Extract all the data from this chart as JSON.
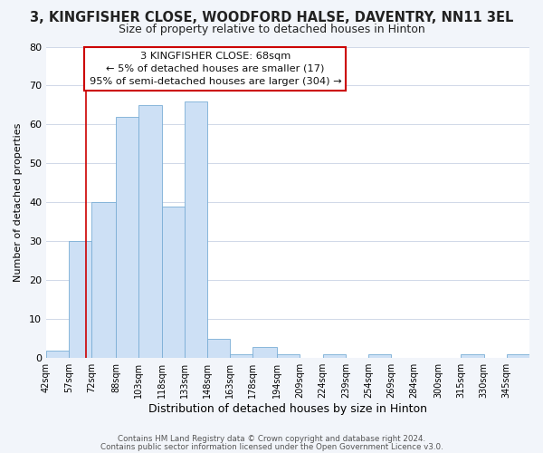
{
  "title": "3, KINGFISHER CLOSE, WOODFORD HALSE, DAVENTRY, NN11 3EL",
  "subtitle": "Size of property relative to detached houses in Hinton",
  "xlabel": "Distribution of detached houses by size in Hinton",
  "ylabel": "Number of detached properties",
  "bin_labels": [
    "42sqm",
    "57sqm",
    "72sqm",
    "88sqm",
    "103sqm",
    "118sqm",
    "133sqm",
    "148sqm",
    "163sqm",
    "178sqm",
    "194sqm",
    "209sqm",
    "224sqm",
    "239sqm",
    "254sqm",
    "269sqm",
    "284sqm",
    "300sqm",
    "315sqm",
    "330sqm",
    "345sqm"
  ],
  "bar_values": [
    2,
    30,
    40,
    62,
    65,
    39,
    66,
    5,
    1,
    3,
    1,
    0,
    1,
    0,
    1,
    0,
    0,
    0,
    1,
    0,
    1
  ],
  "bar_color": "#cde0f5",
  "bar_edge_color": "#7aaed6",
  "ylim": [
    0,
    80
  ],
  "yticks": [
    0,
    10,
    20,
    30,
    40,
    50,
    60,
    70,
    80
  ],
  "vline_x": 68,
  "bin_edges": [
    42,
    57,
    72,
    88,
    103,
    118,
    133,
    148,
    163,
    178,
    194,
    209,
    224,
    239,
    254,
    269,
    284,
    300,
    315,
    330,
    345,
    360
  ],
  "annotation_title": "3 KINGFISHER CLOSE: 68sqm",
  "annotation_line1": "← 5% of detached houses are smaller (17)",
  "annotation_line2": "95% of semi-detached houses are larger (304) →",
  "footer1": "Contains HM Land Registry data © Crown copyright and database right 2024.",
  "footer2": "Contains public sector information licensed under the Open Government Licence v3.0.",
  "bg_color": "#f2f5fa",
  "plot_bg_color": "#ffffff",
  "grid_color": "#d0d8e8",
  "vline_color": "#cc0000",
  "annotation_box_color": "#ffffff",
  "annotation_box_edge": "#cc0000",
  "title_fontsize": 10.5,
  "subtitle_fontsize": 9,
  "ylabel_fontsize": 8,
  "xlabel_fontsize": 9
}
